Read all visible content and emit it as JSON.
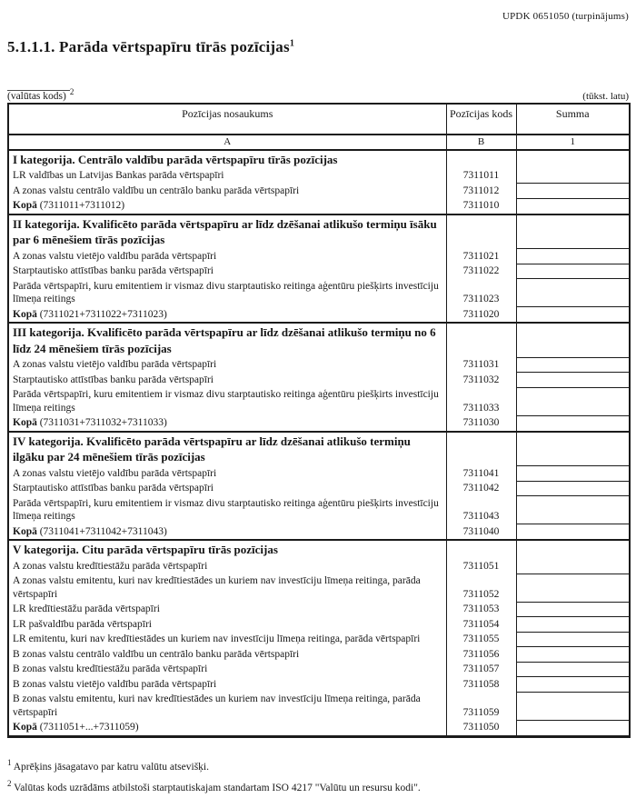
{
  "page": {
    "form_ref": "UPDK 0651050 (turpinājums)",
    "title": "5.1.1.1. Parāda vērtspapīru tīrās pozīcijas",
    "title_footnote_mark": "1",
    "currency_code_label": "(valūtas kods)",
    "currency_code_footnote_mark": "2",
    "units_label": "(tūkst. latu)"
  },
  "table": {
    "columns": {
      "name": "Pozīcijas nosaukums",
      "code": "Pozīcijas kods",
      "sum": "Summa"
    },
    "column_letters": {
      "name": "A",
      "code": "B",
      "sum": "1"
    },
    "sections": [
      {
        "heading": "I kategorija. Centrālo valdību parāda vērtspapīru tīrās pozīcijas",
        "merge_first_sum": true,
        "rows": [
          {
            "label_bold": "",
            "label": "LR valdības un Latvijas Bankas parāda vērtspapīri",
            "code": "7311011",
            "sum": ""
          },
          {
            "label_bold": "",
            "label": "A zonas valstu centrālo valdību un centrālo banku parāda vērtspapīri",
            "code": "7311012",
            "sum": ""
          },
          {
            "label_bold": "Kopā",
            "label": " (7311011+7311012)",
            "code": "7311010",
            "sum": ""
          }
        ]
      },
      {
        "heading": "II kategorija. Kvalificēto parāda vērtspapīru ar līdz dzēšanai atlikušo termiņu īsāku par 6 mēnešiem tīrās pozīcijas",
        "merge_first_sum": false,
        "rows": [
          {
            "label_bold": "",
            "label": "A zonas valstu vietējo valdību parāda vērtspapīri",
            "code": "7311021",
            "sum": ""
          },
          {
            "label_bold": "",
            "label": "Starptautisko attīstības banku parāda vērtspapīri",
            "code": "7311022",
            "sum": ""
          },
          {
            "label_bold": "",
            "label": "Parāda vērtspapīri, kuru emitentiem ir vismaz divu starptautisko reitinga aģentūru piešķirts investīciju līmeņa reitings",
            "code": "7311023",
            "sum": ""
          },
          {
            "label_bold": "Kopā",
            "label": " (7311021+7311022+7311023)",
            "code": "7311020",
            "sum": ""
          }
        ]
      },
      {
        "heading": "III kategorija. Kvalificēto parāda vērtspapīru ar līdz dzēšanai atlikušo termiņu no 6 līdz 24 mēnešiem tīrās pozīcijas",
        "merge_first_sum": false,
        "rows": [
          {
            "label_bold": "",
            "label": "A zonas valstu vietējo valdību parāda vērtspapīri",
            "code": "7311031",
            "sum": ""
          },
          {
            "label_bold": "",
            "label": "Starptautisko attīstības banku parāda vērtspapīri",
            "code": "7311032",
            "sum": ""
          },
          {
            "label_bold": "",
            "label": "Parāda vērtspapīri, kuru emitentiem ir vismaz divu starptautisko reitinga aģentūru piešķirts investīciju līmeņa reitings",
            "code": "7311033",
            "sum": ""
          },
          {
            "label_bold": "Kopā",
            "label": " (7311031+7311032+7311033)",
            "code": "7311030",
            "sum": ""
          }
        ]
      },
      {
        "heading": "IV kategorija. Kvalificēto parāda vērtspapīru ar līdz dzēšanai atlikušo termiņu ilgāku par 24 mēnešiem tīrās pozīcijas",
        "merge_first_sum": false,
        "rows": [
          {
            "label_bold": "",
            "label": "A zonas valstu vietējo valdību parāda vērtspapīri",
            "code": "7311041",
            "sum": ""
          },
          {
            "label_bold": "",
            "label": "Starptautisko attīstības banku parāda vērtspapīri",
            "code": "7311042",
            "sum": ""
          },
          {
            "label_bold": "",
            "label": "Parāda vērtspapīri, kuru emitentiem ir vismaz divu starptautisko reitinga aģentūru piešķirts investīciju līmeņa reitings",
            "code": "7311043",
            "sum": ""
          },
          {
            "label_bold": "Kopā",
            "label": " (7311041+7311042+7311043)",
            "code": "7311040",
            "sum": ""
          }
        ]
      },
      {
        "heading": "V kategorija. Citu parāda vērtspapīru tīrās pozīcijas",
        "merge_first_sum": true,
        "rows": [
          {
            "label_bold": "",
            "label": "A zonas valstu kredītiestāžu parāda vērtspapīri",
            "code": "7311051",
            "sum": ""
          },
          {
            "label_bold": "",
            "label": "A zonas valstu emitentu, kuri nav kredītiestādes un kuriem nav investīciju līmeņa reitinga, parāda vērtspapīri",
            "code": "7311052",
            "sum": ""
          },
          {
            "label_bold": "",
            "label": "LR kredītiestāžu parāda vērtspapīri",
            "code": "7311053",
            "sum": ""
          },
          {
            "label_bold": "",
            "label": "LR pašvaldību parāda vērtspapīri",
            "code": "7311054",
            "sum": ""
          },
          {
            "label_bold": "",
            "label": "LR emitentu, kuri nav kredītiestādes un kuriem nav investīciju līmeņa reitinga, parāda vērtspapīri",
            "code": "7311055",
            "sum": ""
          },
          {
            "label_bold": "",
            "label": "B zonas valstu centrālo valdību un centrālo banku parāda vērtspapīri",
            "code": "7311056",
            "sum": ""
          },
          {
            "label_bold": "",
            "label": "B zonas valstu kredītiestāžu parāda vērtspapīri",
            "code": "7311057",
            "sum": ""
          },
          {
            "label_bold": "",
            "label": "B zonas valstu vietējo valdību parāda vērtspapīri",
            "code": "7311058",
            "sum": ""
          },
          {
            "label_bold": "",
            "label": "B zonas valstu emitentu, kuri nav kredītiestādes un kuriem nav investīciju līmeņa reitinga, parāda vērtspapīri",
            "code": "7311059",
            "sum": ""
          },
          {
            "label_bold": "Kopā",
            "label": " (7311051+...+7311059)",
            "code": "7311050",
            "sum": ""
          }
        ]
      }
    ]
  },
  "footnotes": [
    {
      "mark": "1",
      "text": "Aprēķins jāsagatavo par katru valūtu atsevišķi."
    },
    {
      "mark": "2",
      "text": "Valūtas kods uzrādāms atbilstoši starptautiskajam standartam ISO 4217 \"Valūtu un resursu kodi\"."
    }
  ]
}
